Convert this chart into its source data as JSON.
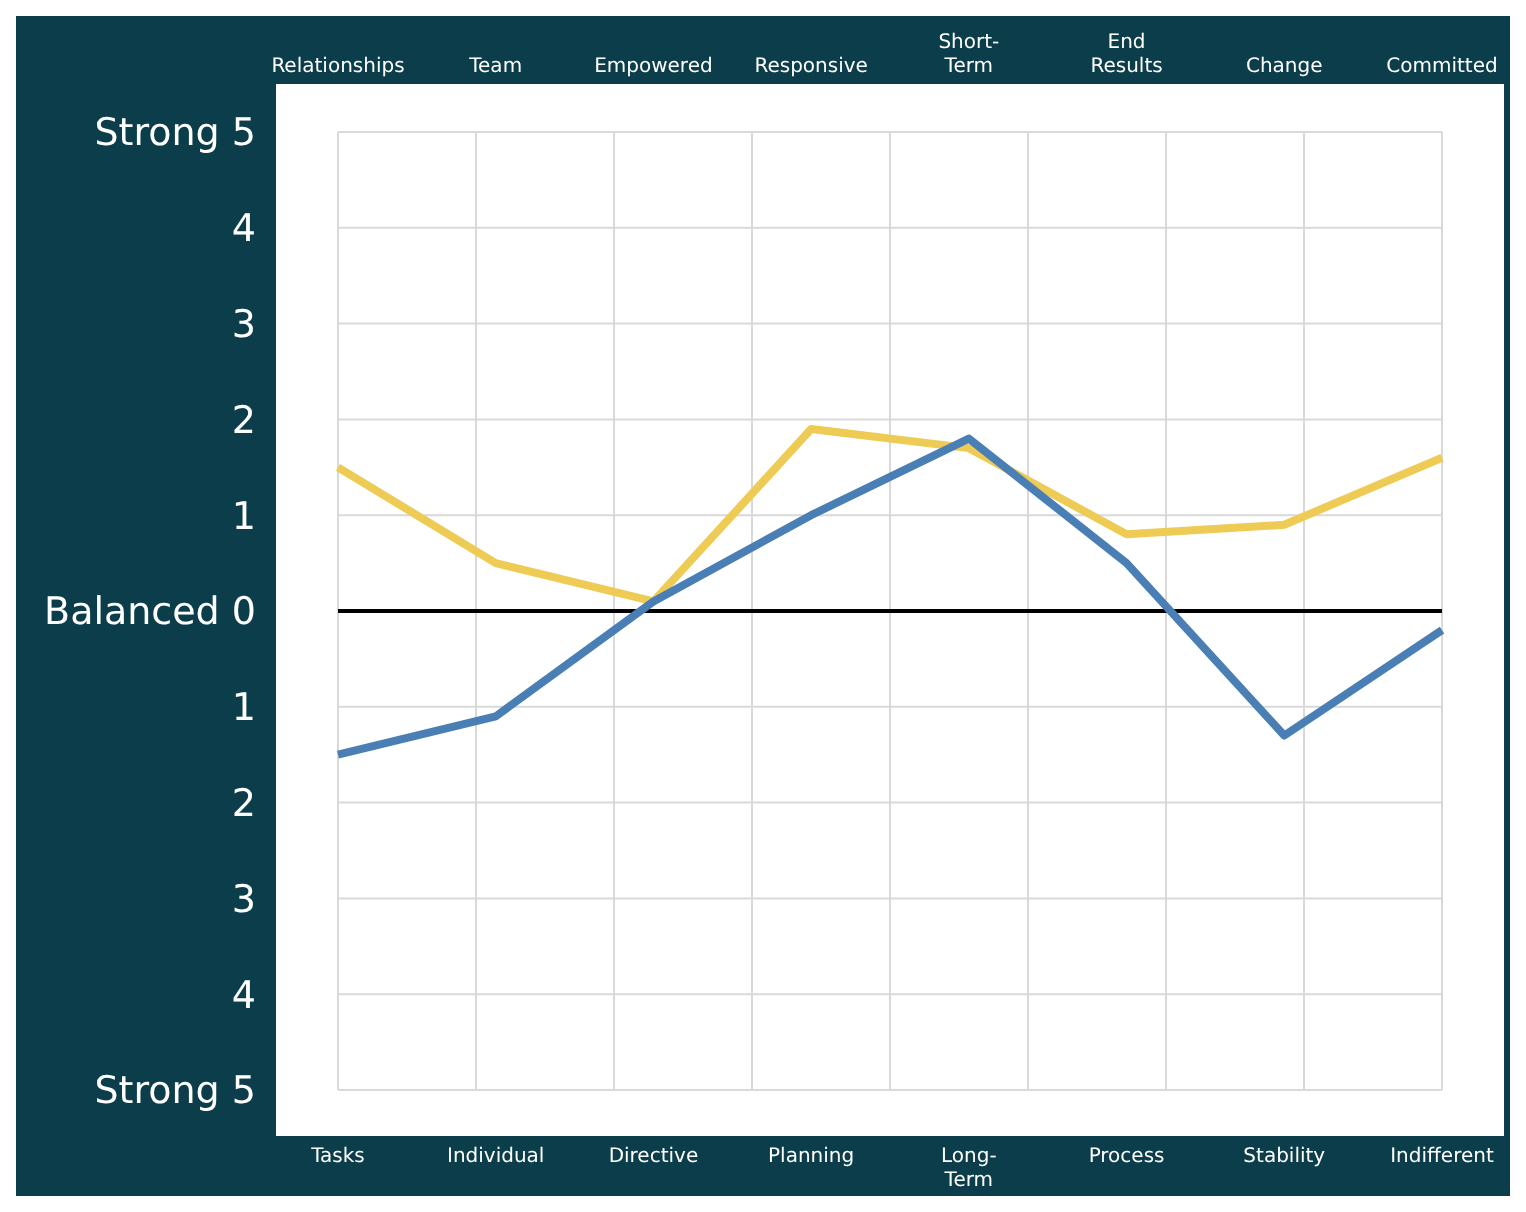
{
  "chart_data": {
    "type": "line",
    "categories": [
      "Tasks",
      "Individual",
      "Directive",
      "Planning",
      "Long-Term",
      "Process",
      "Stability",
      "Indifferent"
    ],
    "annotations": [
      "Relationships",
      "Team",
      "Empowered",
      "Responsive",
      "Short-Term",
      "End Results",
      "Change",
      "Committed"
    ],
    "series": [
      {
        "color": "#eecb55",
        "values": [
          1.5,
          0.5,
          0.1,
          1.9,
          1.7,
          0.8,
          0.9,
          1.6
        ]
      },
      {
        "color": "#4a7fb5",
        "values": [
          -1.5,
          -1.1,
          0.1,
          1.0,
          1.8,
          0.5,
          -1.3,
          -0.2
        ]
      }
    ],
    "ylim": [
      -5,
      5
    ],
    "yticks": [
      {
        "value": 5,
        "label": "Strong 5"
      },
      {
        "value": 4,
        "label": "4"
      },
      {
        "value": 3,
        "label": "3"
      },
      {
        "value": 2,
        "label": "2"
      },
      {
        "value": 1,
        "label": "1"
      },
      {
        "value": 0,
        "label": "Balanced 0"
      },
      {
        "value": -1,
        "label": "1"
      },
      {
        "value": -2,
        "label": "2"
      },
      {
        "value": -3,
        "label": "3"
      },
      {
        "value": -4,
        "label": "4"
      },
      {
        "value": -5,
        "label": "Strong 5"
      }
    ],
    "ref_lines": [
      {
        "axis": "y",
        "value": 0,
        "color": "#000000"
      }
    ],
    "grid": true,
    "marker": "none"
  }
}
